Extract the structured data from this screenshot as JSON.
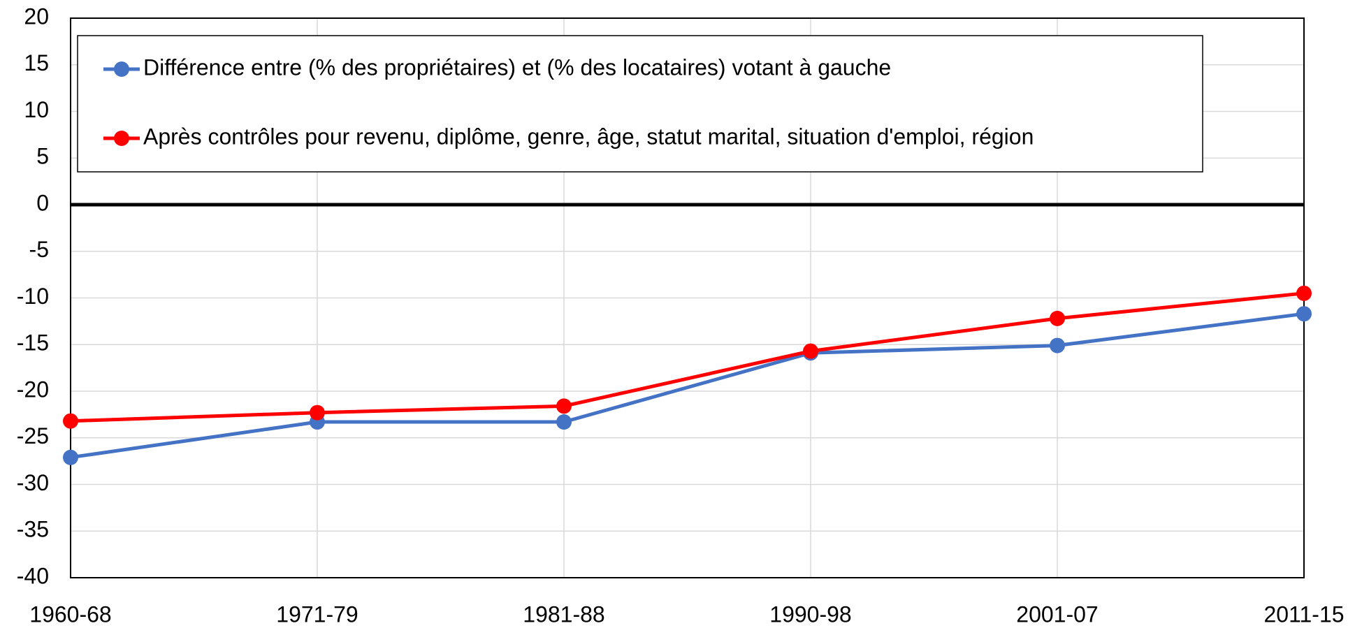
{
  "chart_data": {
    "type": "line",
    "categories": [
      "1960-68",
      "1971-79",
      "1981-88",
      "1990-98",
      "2001-07",
      "2011-15"
    ],
    "series": [
      {
        "name": "Différence entre (% des propriétaires) et (% des locataires) votant à gauche",
        "color": "#4472c4",
        "values": [
          -27.1,
          -23.3,
          -23.3,
          -15.9,
          -15.1,
          -11.7
        ]
      },
      {
        "name": "Après contrôles pour revenu, diplôme, genre, âge, statut marital, situation d'emploi, région",
        "color": "#ff0000",
        "values": [
          -23.2,
          -22.3,
          -21.6,
          -15.7,
          -12.2,
          -9.5
        ]
      }
    ],
    "ylim": [
      -40,
      20
    ],
    "yticks": [
      -40,
      -35,
      -30,
      -25,
      -20,
      -15,
      -10,
      -5,
      0,
      5,
      10,
      15,
      20
    ],
    "grid": true,
    "legend": "top-left"
  }
}
